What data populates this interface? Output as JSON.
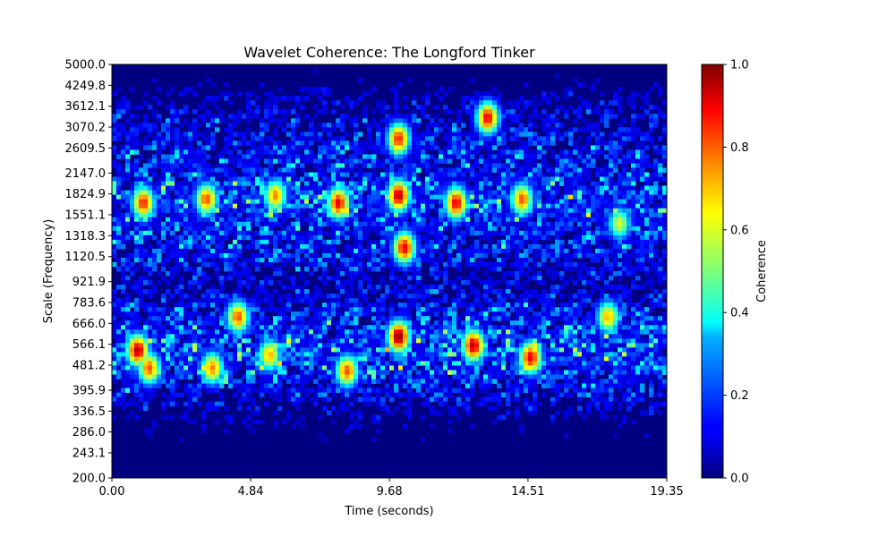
{
  "chart_data": {
    "type": "heatmap",
    "title": "Wavelet Coherence: The Longford Tinker",
    "xlabel": "Time (seconds)",
    "ylabel": "Scale (Frequency)",
    "xlim": [
      0,
      19.35
    ],
    "ylim": [
      200,
      5000
    ],
    "y_scale": "log",
    "x_ticks": [
      "0.00",
      "4.84",
      "9.68",
      "14.51",
      "19.35"
    ],
    "y_ticks": [
      "200.0",
      "243.1",
      "286.0",
      "336.5",
      "395.9",
      "481.2",
      "566.1",
      "666.0",
      "783.6",
      "921.9",
      "1120.5",
      "1318.3",
      "1551.1",
      "1824.9",
      "2147.0",
      "2609.5",
      "3070.2",
      "3612.1",
      "4249.8",
      "5000.0"
    ],
    "colormap": "jet",
    "colorbar": {
      "label": "Coherence",
      "range": [
        0,
        1
      ],
      "ticks": [
        "0.0",
        "0.2",
        "0.4",
        "0.6",
        "0.8",
        "1.0"
      ]
    },
    "band_profile": [
      {
        "scale": 200.0,
        "mean_coherence": 0.02
      },
      {
        "scale": 243.1,
        "mean_coherence": 0.03
      },
      {
        "scale": 286.0,
        "mean_coherence": 0.05
      },
      {
        "scale": 336.5,
        "mean_coherence": 0.1
      },
      {
        "scale": 395.9,
        "mean_coherence": 0.18
      },
      {
        "scale": 481.2,
        "mean_coherence": 0.3
      },
      {
        "scale": 566.1,
        "mean_coherence": 0.32
      },
      {
        "scale": 666.0,
        "mean_coherence": 0.25
      },
      {
        "scale": 783.6,
        "mean_coherence": 0.18
      },
      {
        "scale": 921.9,
        "mean_coherence": 0.12
      },
      {
        "scale": 1120.5,
        "mean_coherence": 0.2
      },
      {
        "scale": 1318.3,
        "mean_coherence": 0.24
      },
      {
        "scale": 1551.1,
        "mean_coherence": 0.27
      },
      {
        "scale": 1824.9,
        "mean_coherence": 0.3
      },
      {
        "scale": 2147.0,
        "mean_coherence": 0.22
      },
      {
        "scale": 2609.5,
        "mean_coherence": 0.2
      },
      {
        "scale": 3070.2,
        "mean_coherence": 0.16
      },
      {
        "scale": 3612.1,
        "mean_coherence": 0.12
      },
      {
        "scale": 4249.8,
        "mean_coherence": 0.06
      },
      {
        "scale": 5000.0,
        "mean_coherence": 0.02
      }
    ],
    "hotspots": [
      {
        "time": 1.1,
        "scale": 1700,
        "coherence": 0.85
      },
      {
        "time": 0.9,
        "scale": 540,
        "coherence": 0.95
      },
      {
        "time": 1.3,
        "scale": 470,
        "coherence": 0.8
      },
      {
        "time": 3.3,
        "scale": 1750,
        "coherence": 0.8
      },
      {
        "time": 3.5,
        "scale": 470,
        "coherence": 0.75
      },
      {
        "time": 4.4,
        "scale": 700,
        "coherence": 0.8
      },
      {
        "time": 5.7,
        "scale": 1800,
        "coherence": 0.75
      },
      {
        "time": 5.5,
        "scale": 520,
        "coherence": 0.7
      },
      {
        "time": 7.9,
        "scale": 1700,
        "coherence": 0.9
      },
      {
        "time": 8.2,
        "scale": 460,
        "coherence": 0.8
      },
      {
        "time": 10.0,
        "scale": 2800,
        "coherence": 0.85
      },
      {
        "time": 10.0,
        "scale": 1800,
        "coherence": 0.95
      },
      {
        "time": 10.2,
        "scale": 1200,
        "coherence": 0.9
      },
      {
        "time": 10.0,
        "scale": 600,
        "coherence": 1.0
      },
      {
        "time": 12.0,
        "scale": 1700,
        "coherence": 0.9
      },
      {
        "time": 12.6,
        "scale": 560,
        "coherence": 0.95
      },
      {
        "time": 13.1,
        "scale": 3300,
        "coherence": 0.9
      },
      {
        "time": 14.3,
        "scale": 1750,
        "coherence": 0.8
      },
      {
        "time": 14.6,
        "scale": 510,
        "coherence": 0.9
      },
      {
        "time": 17.3,
        "scale": 700,
        "coherence": 0.7
      },
      {
        "time": 17.7,
        "scale": 1450,
        "coherence": 0.6
      }
    ]
  }
}
